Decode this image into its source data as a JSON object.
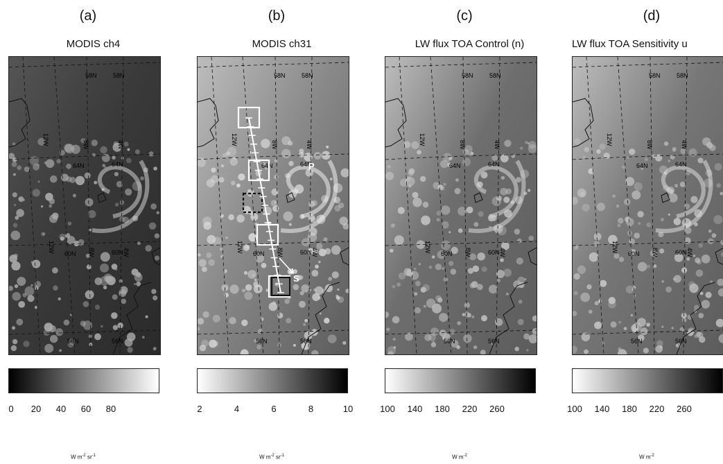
{
  "panels": [
    {
      "label": "(a)",
      "title": "MODIS ch4",
      "colorbar": {
        "ticks": [
          "0",
          "20",
          "40",
          "60",
          "80"
        ],
        "from": "#000000",
        "to": "#ffffff"
      },
      "unit": {
        "main": "W m",
        "exp1": "-2",
        "mid": " sr",
        "exp2": "-1"
      },
      "lat_labels": [
        "58N",
        "64N",
        "60N",
        "56N"
      ],
      "lon_labels": [
        "12W",
        "8W",
        "4W"
      ],
      "annotations": []
    },
    {
      "label": "(b)",
      "title": "MODIS ch31",
      "colorbar": {
        "ticks": [
          "2",
          "4",
          "6",
          "8",
          "10"
        ],
        "from": "#ffffff",
        "to": "#000000"
      },
      "unit": {
        "main": "W m",
        "exp1": "-2",
        "mid": " sr",
        "exp2": "-1"
      },
      "lat_labels": [
        "58N",
        "64N",
        "60N",
        "56N"
      ],
      "lon_labels": [
        "12W",
        "8W",
        "4W"
      ],
      "annotations": [
        "P",
        "S"
      ]
    },
    {
      "label": "(c)",
      "title": "LW flux TOA Control (n)",
      "colorbar": {
        "ticks": [
          "100",
          "140",
          "180",
          "220",
          "260"
        ],
        "from": "#ffffff",
        "to": "#000000"
      },
      "unit": {
        "main": "W m",
        "exp1": "-2",
        "mid": "",
        "exp2": ""
      },
      "lat_labels": [
        "58N",
        "64N",
        "60N",
        "56N"
      ],
      "lon_labels": [
        "12W",
        "8W",
        "4W"
      ],
      "annotations": []
    },
    {
      "label": "(d)",
      "title": "LW flux TOA Sensitivity u",
      "colorbar": {
        "ticks": [
          "100",
          "140",
          "180",
          "220",
          "260"
        ],
        "from": "#ffffff",
        "to": "#000000"
      },
      "unit": {
        "main": "W m",
        "exp1": "-2",
        "mid": "",
        "exp2": ""
      },
      "lat_labels": [
        "58N",
        "64N",
        "60N",
        "56N"
      ],
      "lon_labels": [
        "12W",
        "8W",
        "4W"
      ],
      "annotations": []
    }
  ]
}
